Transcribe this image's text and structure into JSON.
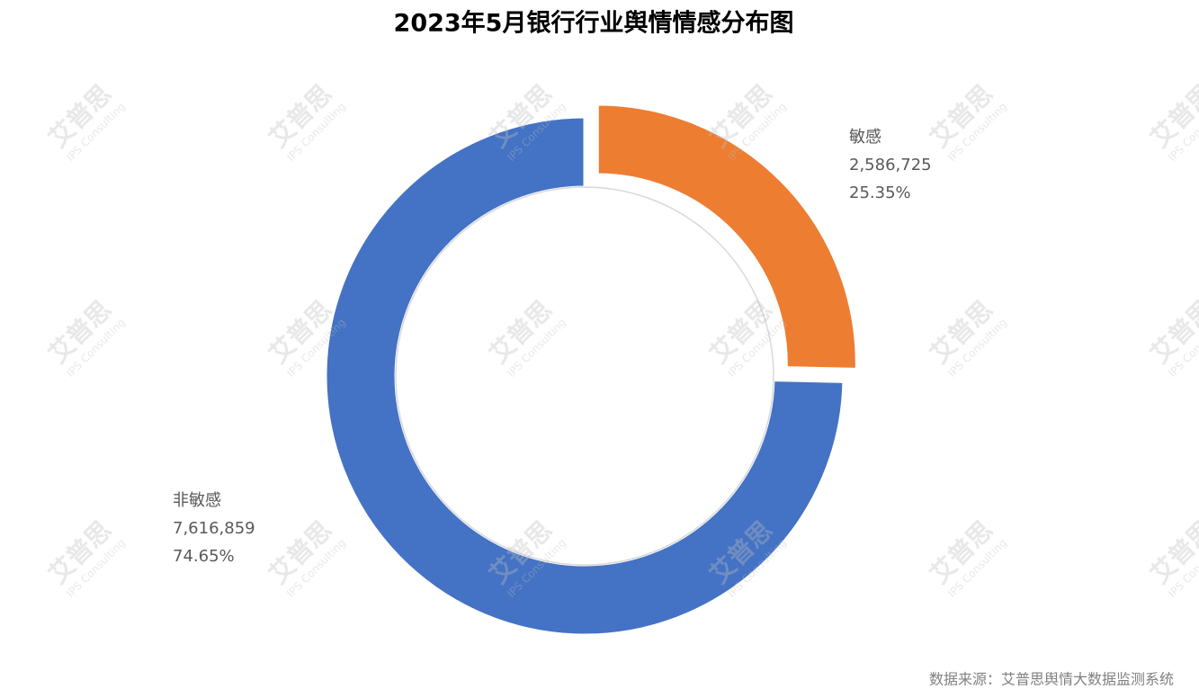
{
  "chart_data": {
    "type": "donut",
    "title": "2023年5月银行行业舆情情感分布图",
    "categories": [
      "敏感",
      "非敏感"
    ],
    "values": [
      2586725,
      7616859
    ],
    "value_labels": [
      "2,586,725",
      "7,616,859"
    ],
    "percent_labels": [
      "25.35%",
      "74.65%"
    ],
    "colors": [
      "#ed7d31",
      "#4472c4"
    ],
    "source": "数据来源：艾普思舆情大数据监测系统",
    "watermark": "艾普思",
    "watermark_sub": "IPS Consulting"
  }
}
